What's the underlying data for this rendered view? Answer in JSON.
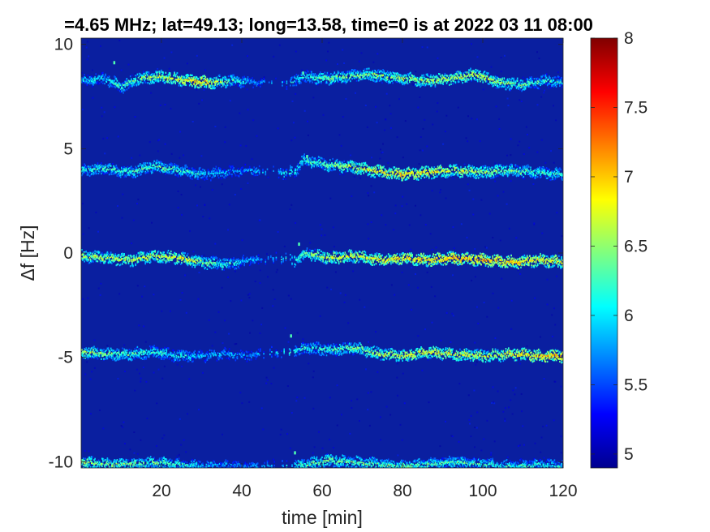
{
  "chart_data": {
    "type": "heatmap",
    "title": "=4.65 MHz;  lat=49.13; long=13.58, time=0 is at 2022 03 11 08:00",
    "xlabel": "time [min]",
    "ylabel": "Δf [Hz]",
    "xlim": [
      0,
      120
    ],
    "ylim": [
      -10.3,
      10.3
    ],
    "x_ticks": [
      {
        "value": 20,
        "label": "20"
      },
      {
        "value": 40,
        "label": "40"
      },
      {
        "value": 60,
        "label": "60"
      },
      {
        "value": 80,
        "label": "80"
      },
      {
        "value": 100,
        "label": "100"
      },
      {
        "value": 120,
        "label": "120"
      }
    ],
    "y_ticks": [
      {
        "value": 10,
        "label": "10"
      },
      {
        "value": 5,
        "label": "5"
      },
      {
        "value": 0,
        "label": "0"
      },
      {
        "value": -5,
        "label": "-5"
      },
      {
        "value": -10,
        "label": "-10"
      }
    ],
    "colorbar": {
      "colormap": "jet",
      "clim": [
        4.9,
        8.0
      ],
      "ticks": [
        {
          "value": 8,
          "label": "8"
        },
        {
          "value": 7.5,
          "label": "7.5"
        },
        {
          "value": 7,
          "label": "7"
        },
        {
          "value": 6.5,
          "label": "6.5"
        },
        {
          "value": 6,
          "label": "6"
        },
        {
          "value": 5.5,
          "label": "5.5"
        },
        {
          "value": 5,
          "label": "5"
        }
      ]
    },
    "background_value": 5.0,
    "traces": [
      {
        "points": [
          [
            0,
            8.3
          ],
          [
            6,
            8.4
          ],
          [
            10,
            8.0
          ],
          [
            14,
            8.4
          ],
          [
            20,
            8.5
          ],
          [
            26,
            8.3
          ],
          [
            32,
            8.2
          ],
          [
            38,
            8.3
          ],
          [
            43,
            8.2
          ],
          [
            52,
            8.2
          ],
          [
            55,
            8.5
          ],
          [
            60,
            8.4
          ],
          [
            66,
            8.5
          ],
          [
            72,
            8.6
          ],
          [
            80,
            8.4
          ],
          [
            86,
            8.3
          ],
          [
            92,
            8.4
          ],
          [
            98,
            8.6
          ],
          [
            104,
            8.2
          ],
          [
            110,
            8.1
          ],
          [
            116,
            8.3
          ],
          [
            120,
            8.2
          ]
        ],
        "peak": [
          [
            0,
            6.2
          ],
          [
            30,
            7.2
          ],
          [
            44,
            5.9
          ],
          [
            60,
            6.6
          ],
          [
            80,
            6.8
          ],
          [
            100,
            6.9
          ],
          [
            120,
            6.3
          ]
        ]
      },
      {
        "points": [
          [
            0,
            4.0
          ],
          [
            6,
            4.1
          ],
          [
            12,
            3.9
          ],
          [
            18,
            4.2
          ],
          [
            24,
            4.0
          ],
          [
            30,
            3.8
          ],
          [
            36,
            3.9
          ],
          [
            42,
            4.0
          ],
          [
            48,
            3.9
          ],
          [
            53,
            3.9
          ],
          [
            55,
            4.5
          ],
          [
            60,
            4.3
          ],
          [
            66,
            4.2
          ],
          [
            72,
            4.0
          ],
          [
            80,
            3.8
          ],
          [
            86,
            3.9
          ],
          [
            92,
            4.0
          ],
          [
            100,
            3.9
          ],
          [
            106,
            4.0
          ],
          [
            114,
            3.9
          ],
          [
            120,
            3.8
          ]
        ],
        "peak": [
          [
            0,
            6.4
          ],
          [
            20,
            6.6
          ],
          [
            40,
            6.0
          ],
          [
            60,
            6.6
          ],
          [
            80,
            7.2
          ],
          [
            100,
            6.8
          ],
          [
            120,
            6.4
          ]
        ]
      },
      {
        "points": [
          [
            0,
            -0.1
          ],
          [
            6,
            -0.2
          ],
          [
            12,
            -0.3
          ],
          [
            18,
            -0.1
          ],
          [
            24,
            -0.2
          ],
          [
            30,
            -0.4
          ],
          [
            36,
            -0.5
          ],
          [
            42,
            -0.3
          ],
          [
            48,
            -0.2
          ],
          [
            53,
            -0.3
          ],
          [
            56,
            0.0
          ],
          [
            62,
            -0.2
          ],
          [
            68,
            -0.1
          ],
          [
            74,
            -0.3
          ],
          [
            80,
            -0.2
          ],
          [
            86,
            -0.3
          ],
          [
            92,
            -0.2
          ],
          [
            100,
            -0.3
          ],
          [
            108,
            -0.4
          ],
          [
            114,
            -0.3
          ],
          [
            120,
            -0.4
          ]
        ],
        "peak": [
          [
            0,
            6.8
          ],
          [
            25,
            7.0
          ],
          [
            45,
            6.0
          ],
          [
            60,
            6.9
          ],
          [
            80,
            7.1
          ],
          [
            100,
            7.3
          ],
          [
            120,
            7.0
          ]
        ]
      },
      {
        "points": [
          [
            0,
            -4.7
          ],
          [
            6,
            -4.8
          ],
          [
            12,
            -4.8
          ],
          [
            18,
            -4.7
          ],
          [
            24,
            -4.9
          ],
          [
            30,
            -4.9
          ],
          [
            36,
            -4.8
          ],
          [
            40,
            -4.9
          ],
          [
            44,
            -4.8
          ],
          [
            52,
            -4.7
          ],
          [
            56,
            -4.5
          ],
          [
            62,
            -4.6
          ],
          [
            68,
            -4.5
          ],
          [
            74,
            -4.8
          ],
          [
            80,
            -4.9
          ],
          [
            86,
            -4.7
          ],
          [
            92,
            -4.8
          ],
          [
            100,
            -4.9
          ],
          [
            108,
            -4.8
          ],
          [
            114,
            -4.9
          ],
          [
            120,
            -4.9
          ]
        ],
        "peak": [
          [
            0,
            6.8
          ],
          [
            20,
            6.4
          ],
          [
            40,
            6.0
          ],
          [
            60,
            6.5
          ],
          [
            80,
            7.0
          ],
          [
            100,
            6.9
          ],
          [
            120,
            7.3
          ]
        ]
      },
      {
        "points": [
          [
            0,
            -10.0
          ],
          [
            6,
            -10.1
          ],
          [
            12,
            -10.1
          ],
          [
            18,
            -10.0
          ],
          [
            24,
            -10.1
          ],
          [
            30,
            -10.2
          ],
          [
            36,
            -10.1
          ],
          [
            42,
            -10.2
          ],
          [
            48,
            -10.2
          ],
          [
            52,
            -10.2
          ],
          [
            56,
            -10.1
          ],
          [
            62,
            -9.9
          ],
          [
            68,
            -10.0
          ],
          [
            74,
            -10.1
          ],
          [
            80,
            -10.2
          ],
          [
            86,
            -10.1
          ],
          [
            92,
            -10.0
          ],
          [
            100,
            -10.1
          ],
          [
            108,
            -10.2
          ],
          [
            114,
            -10.1
          ],
          [
            120,
            -10.2
          ]
        ],
        "peak": [
          [
            0,
            6.8
          ],
          [
            20,
            6.6
          ],
          [
            40,
            5.9
          ],
          [
            60,
            6.7
          ],
          [
            80,
            6.6
          ],
          [
            100,
            6.5
          ],
          [
            120,
            6.4
          ]
        ]
      }
    ],
    "sparse_points": [
      [
        55,
        8.7
      ],
      [
        56,
        4.7
      ],
      [
        52,
        -3.9
      ],
      [
        53,
        -9.5
      ],
      [
        8,
        9.2
      ],
      [
        54,
        0.5
      ]
    ]
  }
}
